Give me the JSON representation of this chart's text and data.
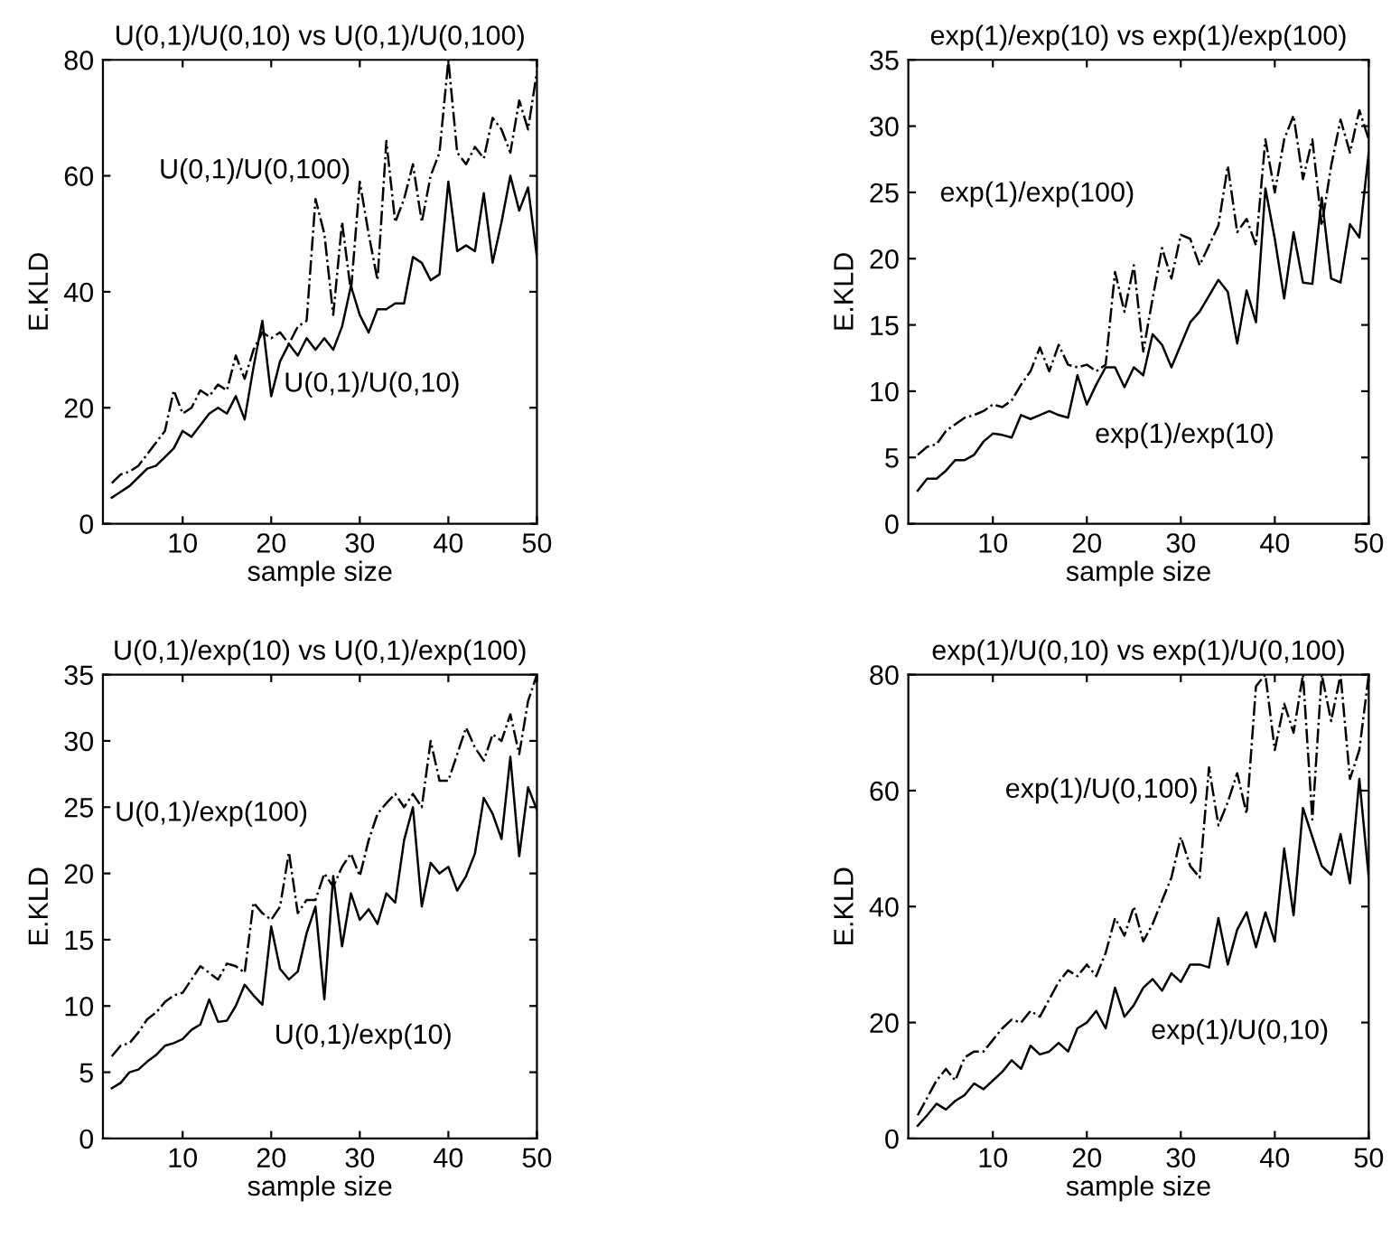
{
  "chart_data": [
    {
      "type": "line",
      "title": "U(0,1)/U(0,10) vs U(0,1)/U(0,100)",
      "xlabel": "sample size",
      "ylabel": "E.KLD",
      "x": [
        2,
        3,
        4,
        5,
        6,
        7,
        8,
        9,
        10,
        11,
        12,
        13,
        14,
        15,
        16,
        17,
        18,
        19,
        20,
        21,
        22,
        23,
        24,
        25,
        26,
        27,
        28,
        29,
        30,
        31,
        32,
        33,
        34,
        35,
        36,
        37,
        38,
        39,
        40,
        41,
        42,
        43,
        44,
        45,
        46,
        47,
        48,
        49,
        50
      ],
      "xlim": [
        1,
        50
      ],
      "xticks": [
        10,
        20,
        30,
        40,
        50
      ],
      "ylim": [
        0,
        80
      ],
      "yticks": [
        0,
        20,
        40,
        60,
        80
      ],
      "grid": false,
      "legend": false,
      "series": [
        {
          "name": "U(0,1)/U(0,10)",
          "color": "#000000",
          "line_style": "solid",
          "values": [
            4.5,
            5.5,
            6.5,
            8,
            9.5,
            10,
            11.5,
            13,
            16,
            15,
            17,
            19,
            20,
            19,
            22,
            18,
            27,
            35,
            22,
            28,
            31,
            29,
            32,
            30,
            32,
            30,
            34,
            41,
            36,
            33,
            37,
            37,
            38,
            38,
            46,
            45,
            42,
            43,
            59,
            47,
            48,
            47,
            57,
            45,
            52,
            60,
            54,
            58,
            46
          ]
        },
        {
          "name": "U(0,1)/U(0,100)",
          "color": "#000000",
          "line_style": "dashdot",
          "values": [
            7,
            8.5,
            9,
            10,
            12,
            14,
            16,
            23,
            19,
            20,
            23,
            22,
            24,
            23,
            29,
            25,
            30,
            33,
            32,
            33,
            31,
            34,
            35,
            56,
            50,
            36,
            52,
            40,
            59,
            50,
            42,
            66,
            52,
            56,
            62,
            52,
            60,
            64,
            80,
            64,
            62,
            65,
            63,
            70,
            68,
            64,
            73,
            68,
            78
          ]
        }
      ],
      "tick_labels": true
    },
    {
      "type": "line",
      "title": "exp(1)/exp(10) vs exp(1)/exp(100)",
      "xlabel": "sample size",
      "ylabel": "E.KLD",
      "x": [
        2,
        3,
        4,
        5,
        6,
        7,
        8,
        9,
        10,
        11,
        12,
        13,
        14,
        15,
        16,
        17,
        18,
        19,
        20,
        21,
        22,
        23,
        24,
        25,
        26,
        27,
        28,
        29,
        30,
        31,
        32,
        33,
        34,
        35,
        36,
        37,
        38,
        39,
        40,
        41,
        42,
        43,
        44,
        45,
        46,
        47,
        48,
        49,
        50
      ],
      "xlim": [
        1,
        50
      ],
      "xticks": [
        10,
        20,
        30,
        40,
        50
      ],
      "ylim": [
        0,
        35
      ],
      "yticks": [
        0,
        5,
        10,
        15,
        20,
        25,
        30,
        35
      ],
      "grid": false,
      "legend": false,
      "series": [
        {
          "name": "exp(1)/exp(10)",
          "color": "#000000",
          "line_style": "solid",
          "values": [
            2.5,
            3.4,
            3.4,
            4,
            4.8,
            4.8,
            5.2,
            6.2,
            6.8,
            6.7,
            6.5,
            8.2,
            7.9,
            8.2,
            8.5,
            8.2,
            8,
            11.2,
            9,
            10.5,
            11.8,
            11.8,
            10.3,
            11.8,
            11.2,
            14.3,
            13.5,
            11.8,
            13.5,
            15.2,
            16,
            17.2,
            18.4,
            17.5,
            13.6,
            17.6,
            15.2,
            25.3,
            21.5,
            17,
            22,
            18.2,
            18.1,
            24.6,
            18.5,
            18.2,
            22.6,
            21.6,
            28
          ]
        },
        {
          "name": "exp(1)/exp(100)",
          "color": "#000000",
          "line_style": "dashdot",
          "values": [
            5.2,
            5.8,
            6,
            7,
            7.5,
            8,
            8.2,
            8.5,
            9,
            8.8,
            9.3,
            10.5,
            11.5,
            13.3,
            11.5,
            13.5,
            12,
            11.8,
            12,
            11.5,
            12,
            19,
            16,
            19.5,
            13,
            17,
            20.8,
            18.5,
            21.8,
            21.5,
            19.5,
            21,
            22.5,
            27,
            22,
            23,
            21,
            29,
            25,
            29,
            30.8,
            26,
            29,
            22.5,
            27,
            30.5,
            28,
            31.2,
            29
          ]
        }
      ],
      "tick_labels": true
    },
    {
      "type": "line",
      "title": "U(0,1)/exp(10) vs U(0,1)/exp(100)",
      "xlabel": "sample size",
      "ylabel": "E.KLD",
      "x": [
        2,
        3,
        4,
        5,
        6,
        7,
        8,
        9,
        10,
        11,
        12,
        13,
        14,
        15,
        16,
        17,
        18,
        19,
        20,
        21,
        22,
        23,
        24,
        25,
        26,
        27,
        28,
        29,
        30,
        31,
        32,
        33,
        34,
        35,
        36,
        37,
        38,
        39,
        40,
        41,
        42,
        43,
        44,
        45,
        46,
        47,
        48,
        49,
        50
      ],
      "xlim": [
        1,
        50
      ],
      "xticks": [
        10,
        20,
        30,
        40,
        50
      ],
      "ylim": [
        0,
        35
      ],
      "yticks": [
        0,
        5,
        10,
        15,
        20,
        25,
        30,
        35
      ],
      "grid": false,
      "legend": false,
      "series": [
        {
          "name": "U(0,1)/exp(10)",
          "color": "#000000",
          "line_style": "solid",
          "values": [
            3.8,
            4.2,
            5,
            5.2,
            5.8,
            6.3,
            7,
            7.2,
            7.5,
            8.2,
            8.6,
            10.5,
            8.8,
            8.9,
            10,
            11.6,
            10.8,
            10.1,
            16,
            12.8,
            12,
            12.6,
            15.5,
            17.5,
            10.5,
            19.8,
            14.5,
            18.5,
            16.5,
            17.3,
            16.2,
            18.5,
            17.8,
            22.5,
            25,
            17.5,
            20.8,
            20,
            20.5,
            18.7,
            19.8,
            21.5,
            25.7,
            24.5,
            22.6,
            28.8,
            21.3,
            26.5,
            24.8
          ]
        },
        {
          "name": "U(0,1)/exp(100)",
          "color": "#000000",
          "line_style": "dashdot",
          "values": [
            6.2,
            7,
            7.2,
            8,
            9,
            9.5,
            10.3,
            10.8,
            11,
            12,
            13,
            12.5,
            12,
            13.2,
            13,
            12.5,
            17.8,
            17,
            16.5,
            17.5,
            21.6,
            17,
            18,
            18,
            20,
            19,
            20.5,
            21.5,
            19.8,
            22.5,
            24.5,
            25.3,
            26,
            25,
            26,
            25,
            30,
            27,
            27,
            29,
            31,
            29.5,
            28.5,
            30.5,
            30,
            32,
            29,
            33,
            35
          ]
        }
      ],
      "tick_labels": true
    },
    {
      "type": "line",
      "title": "exp(1)/U(0,10) vs exp(1)/U(0,100)",
      "xlabel": "sample size",
      "ylabel": "E.KLD",
      "x": [
        2,
        3,
        4,
        5,
        6,
        7,
        8,
        9,
        10,
        11,
        12,
        13,
        14,
        15,
        16,
        17,
        18,
        19,
        20,
        21,
        22,
        23,
        24,
        25,
        26,
        27,
        28,
        29,
        30,
        31,
        32,
        33,
        34,
        35,
        36,
        37,
        38,
        39,
        40,
        41,
        42,
        43,
        44,
        45,
        46,
        47,
        48,
        49,
        50
      ],
      "xlim": [
        1,
        50
      ],
      "xticks": [
        10,
        20,
        30,
        40,
        50
      ],
      "ylim": [
        0,
        80
      ],
      "yticks": [
        0,
        20,
        40,
        60,
        80
      ],
      "grid": false,
      "series": [
        {
          "name": "exp(1)/U(0,10)",
          "color": "#000000",
          "line_style": "solid",
          "values": [
            2.2,
            4,
            6,
            5,
            6.5,
            7.5,
            9.5,
            8.5,
            10,
            11.5,
            13.5,
            12,
            16,
            14.5,
            15,
            16.5,
            15,
            19,
            20,
            22,
            19,
            26,
            21,
            23,
            26,
            27.5,
            25.5,
            28.5,
            27,
            30,
            30,
            29.5,
            38,
            30,
            36,
            39,
            33,
            39,
            34,
            50,
            38.5,
            57,
            52,
            47,
            45.5,
            52.5,
            44,
            62,
            45
          ]
        },
        {
          "name": "exp(1)/U(0,100)",
          "color": "#000000",
          "line_style": "dashdot",
          "values": [
            4,
            7,
            10,
            12,
            10,
            14,
            15,
            15,
            17,
            19,
            20.5,
            20,
            22,
            21,
            24,
            27,
            29,
            28,
            30,
            28,
            32,
            38,
            35,
            40,
            34,
            37,
            41,
            45,
            52,
            47,
            45,
            64,
            54,
            58,
            63,
            56,
            78,
            80,
            67,
            75,
            70,
            80,
            55,
            80,
            72,
            80,
            62,
            67,
            80
          ]
        }
      ],
      "tick_labels": true
    }
  ]
}
